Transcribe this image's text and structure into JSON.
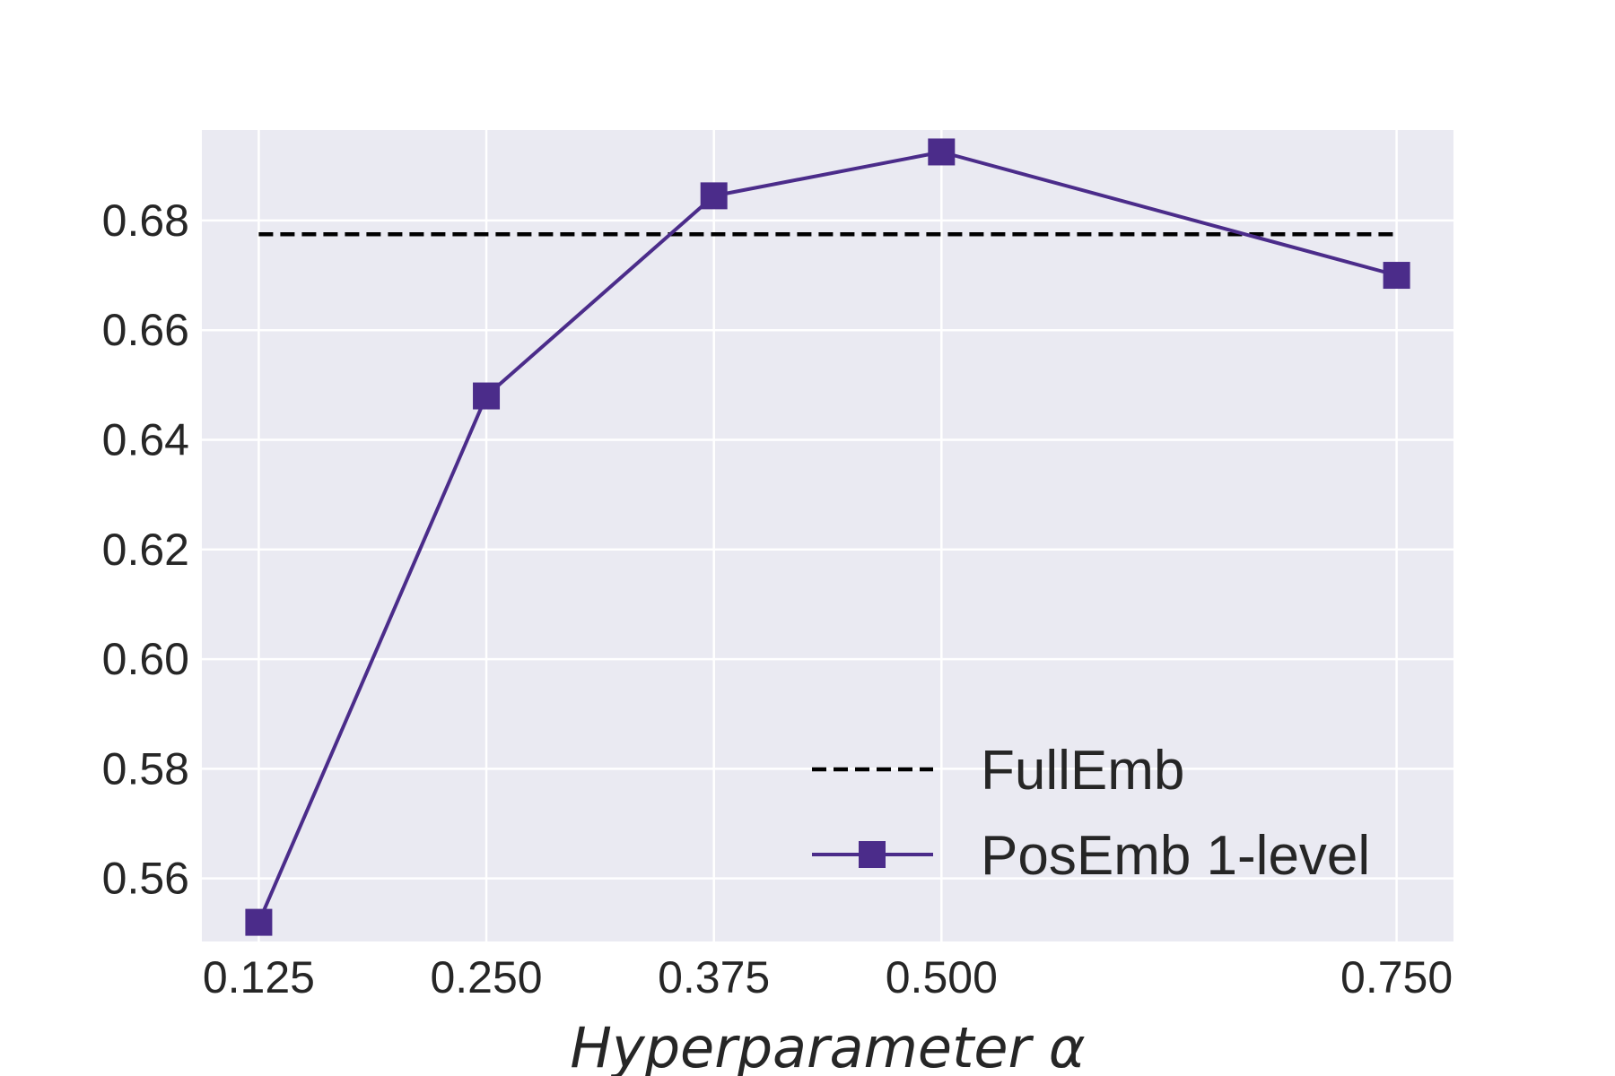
{
  "chart_data": {
    "type": "line",
    "title": "",
    "xlabel": "Hyperparameter α",
    "ylabel": "",
    "x": [
      0.125,
      0.25,
      0.375,
      0.5,
      0.75
    ],
    "x_tick_labels": [
      "0.125",
      "0.250",
      "0.375",
      "0.500",
      "0.750"
    ],
    "y_ticks": [
      0.56,
      0.58,
      0.6,
      0.62,
      0.64,
      0.66,
      0.68
    ],
    "y_tick_labels": [
      "0.56",
      "0.58",
      "0.60",
      "0.62",
      "0.64",
      "0.66",
      "0.68"
    ],
    "xlim": [
      0.09375,
      0.78125
    ],
    "ylim": [
      0.5485,
      0.6965
    ],
    "grid": true,
    "legend_position": "lower-right",
    "series": [
      {
        "name": "FullEmb",
        "style": "dashed",
        "marker": "none",
        "color": "#000000",
        "values": [
          0.6775,
          0.6775,
          0.6775,
          0.6775,
          0.6775
        ]
      },
      {
        "name": "PosEmb 1-level",
        "style": "solid",
        "marker": "square",
        "color": "#4b2c8a",
        "values": [
          0.552,
          0.648,
          0.6845,
          0.6925,
          0.67
        ]
      }
    ],
    "colors": {
      "plot_background": "#eaeaf2",
      "grid": "#ffffff",
      "text": "#262626"
    }
  }
}
